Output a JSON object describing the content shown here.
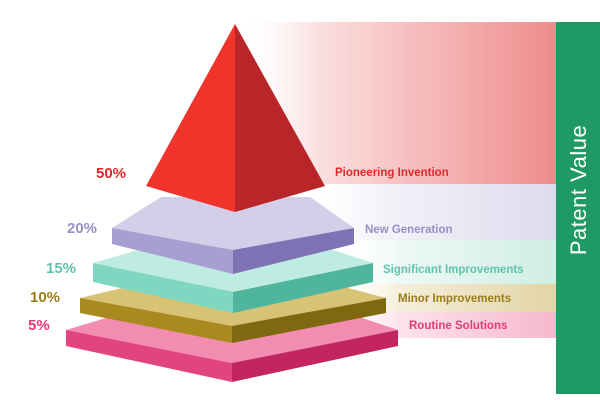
{
  "side_label": "Patent Value",
  "levels": [
    {
      "percent": "50%",
      "label": "Pioneering Invention",
      "color": "#e02a2a"
    },
    {
      "percent": "20%",
      "label": "New Generation",
      "color": "#9a8fc6"
    },
    {
      "percent": "15%",
      "label": "Significant Improvements",
      "color": "#5fc4ae"
    },
    {
      "percent": "10%",
      "label": "Minor Improvements",
      "color": "#9a7d16"
    },
    {
      "percent": "5%",
      "label": "Routine Solutions",
      "color": "#e23b77"
    }
  ],
  "colors": {
    "side_bar": "#1f9a64",
    "band_red": "#ef8a8a",
    "band_purple": "#e4e1f0",
    "band_teal": "#d8f1ea",
    "band_gold": "#e6dab0",
    "band_pink": "#f7bfd2"
  }
}
